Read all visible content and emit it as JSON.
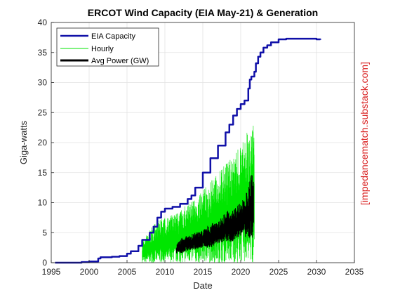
{
  "chart_data": {
    "type": "line",
    "title": "ERCOT Wind Capacity (EIA May-21) & Generation",
    "xlabel": "Date",
    "ylabel": "Giga-watts",
    "xlim": [
      1995,
      2035
    ],
    "ylim": [
      0,
      40
    ],
    "x_ticks": [
      "1995",
      "2000",
      "2005",
      "2010",
      "2015",
      "2020",
      "2025",
      "2030",
      "2035"
    ],
    "y_ticks": [
      "0",
      "5",
      "10",
      "15",
      "20",
      "25",
      "30",
      "35",
      "40"
    ],
    "grid": true,
    "legend_position": "top-left",
    "watermark": "[impedancematch.substack.com]",
    "series": [
      {
        "name": "EIA Capacity",
        "color": "#1010a8",
        "x": [
          1995.5,
          1999.0,
          2000.0,
          2001.2,
          2001.5,
          2003.0,
          2004.0,
          2005.0,
          2005.5,
          2006.5,
          2007.0,
          2008.0,
          2008.5,
          2009.0,
          2009.5,
          2010.0,
          2011.0,
          2012.0,
          2013.0,
          2013.5,
          2014.0,
          2015.0,
          2016.0,
          2017.0,
          2018.0,
          2018.5,
          2019.0,
          2019.5,
          2020.0,
          2020.5,
          2021.0,
          2021.2,
          2021.4,
          2021.8,
          2022.0,
          2022.3,
          2022.6,
          2023.0,
          2023.5,
          2024.0,
          2025.0,
          2026.0,
          2030.0,
          2030.5
        ],
        "values": [
          0.0,
          0.1,
          0.2,
          0.7,
          0.9,
          1.0,
          1.1,
          1.5,
          1.9,
          2.8,
          3.8,
          5.0,
          6.0,
          7.5,
          8.5,
          9.0,
          9.3,
          9.8,
          10.6,
          11.2,
          12.5,
          15.0,
          17.4,
          19.5,
          21.7,
          23.0,
          24.5,
          25.6,
          26.4,
          27.0,
          29.0,
          30.5,
          31.0,
          31.8,
          33.2,
          34.3,
          35.0,
          35.8,
          36.2,
          36.7,
          37.2,
          37.3,
          37.2,
          37.1
        ]
      },
      {
        "name": "Hourly",
        "color": "#00e600",
        "x": [
          2007.0,
          2008.0,
          2009.0,
          2010.0,
          2011.0,
          2012.0,
          2013.0,
          2014.0,
          2015.0,
          2016.0,
          2017.0,
          2018.0,
          2019.0,
          2020.0,
          2020.5,
          2021.0,
          2021.5,
          2021.8
        ],
        "low": [
          0.0,
          0.0,
          0.0,
          0.0,
          0.0,
          0.0,
          0.0,
          0.0,
          0.0,
          0.0,
          0.0,
          0.0,
          0.0,
          0.0,
          0.0,
          0.0,
          0.0,
          0.0
        ],
        "high": [
          3.5,
          5.5,
          7.0,
          7.5,
          8.0,
          8.5,
          10.0,
          10.5,
          12.0,
          13.5,
          15.0,
          16.5,
          18.0,
          19.5,
          21.0,
          22.0,
          23.5,
          22.5
        ]
      },
      {
        "name": "Avg Power (GW)",
        "color": "#000000",
        "x": [
          2011.5,
          2012.0,
          2013.0,
          2014.0,
          2015.0,
          2016.0,
          2017.0,
          2018.0,
          2019.0,
          2020.0,
          2020.5,
          2021.0,
          2021.5,
          2021.7
        ],
        "low": [
          1.5,
          1.5,
          2.0,
          2.2,
          2.5,
          2.5,
          3.0,
          3.5,
          3.5,
          4.5,
          4.5,
          3.5,
          4.0,
          5.5
        ],
        "high": [
          3.0,
          4.0,
          4.5,
          5.0,
          5.5,
          6.5,
          7.0,
          8.5,
          9.0,
          10.0,
          11.0,
          12.5,
          15.5,
          15.0
        ]
      }
    ]
  }
}
